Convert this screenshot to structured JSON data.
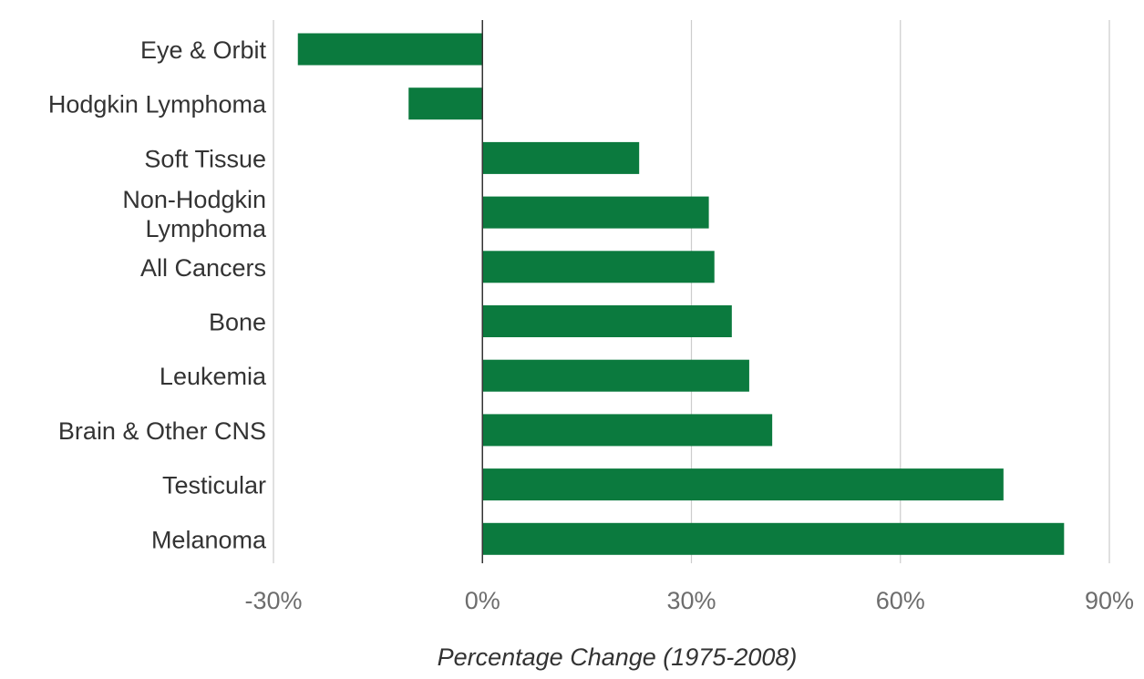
{
  "chart_data": {
    "type": "bar",
    "orientation": "horizontal",
    "title": "",
    "xlabel": "Percentage Change (1975-2008)",
    "ylabel": "",
    "categories": [
      "Eye & Orbit",
      "Hodgkin Lymphoma",
      "Soft Tissue",
      "Non-Hodgkin Lymphoma",
      "All Cancers",
      "Bone",
      "Leukemia",
      "Brain & Other CNS",
      "Testicular",
      "Melanoma"
    ],
    "values": [
      -26.5,
      -10.6,
      22.5,
      32.5,
      33.3,
      35.8,
      38.3,
      41.6,
      74.8,
      83.5
    ],
    "xlim": [
      -30,
      90
    ],
    "xticks": [
      -30,
      0,
      30,
      60,
      90
    ],
    "xtick_labels": [
      "-30%",
      "0%",
      "30%",
      "60%",
      "90%"
    ],
    "grid": "vertical",
    "legend": "none",
    "bar_color": "#0b7a3e",
    "grid_color": "#cccccc",
    "zero_line_color": "#333333"
  }
}
